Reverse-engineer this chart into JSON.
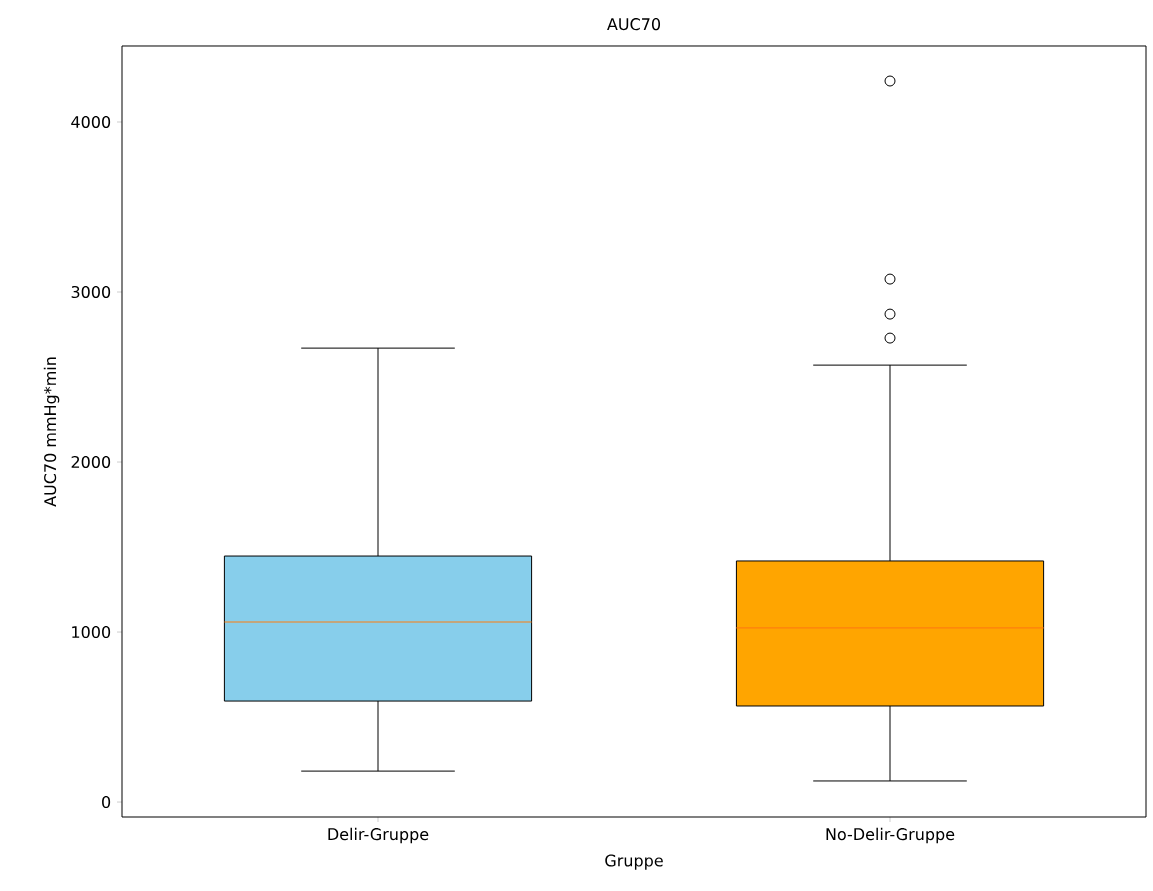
{
  "chart_data": {
    "type": "box",
    "title": "AUC70",
    "xlabel": "Gruppe",
    "ylabel": "AUC70 mmHg*min",
    "categories": [
      "Delir-Gruppe",
      "No-Delir-Gruppe"
    ],
    "colors": [
      "#87ceeb",
      "#ffa500"
    ],
    "boxes": [
      {
        "low": 182,
        "q1": 594,
        "median": 1059,
        "q3": 1447,
        "high": 2670
      },
      {
        "low": 124,
        "q1": 565,
        "median": 1024,
        "q3": 1418,
        "high": 2570,
        "outliers": [
          2729,
          2870,
          3076,
          4241
        ]
      }
    ],
    "ylim": [
      -88,
      4447
    ],
    "yticks": [
      0,
      1000,
      2000,
      3000,
      4000
    ],
    "grid": false
  }
}
